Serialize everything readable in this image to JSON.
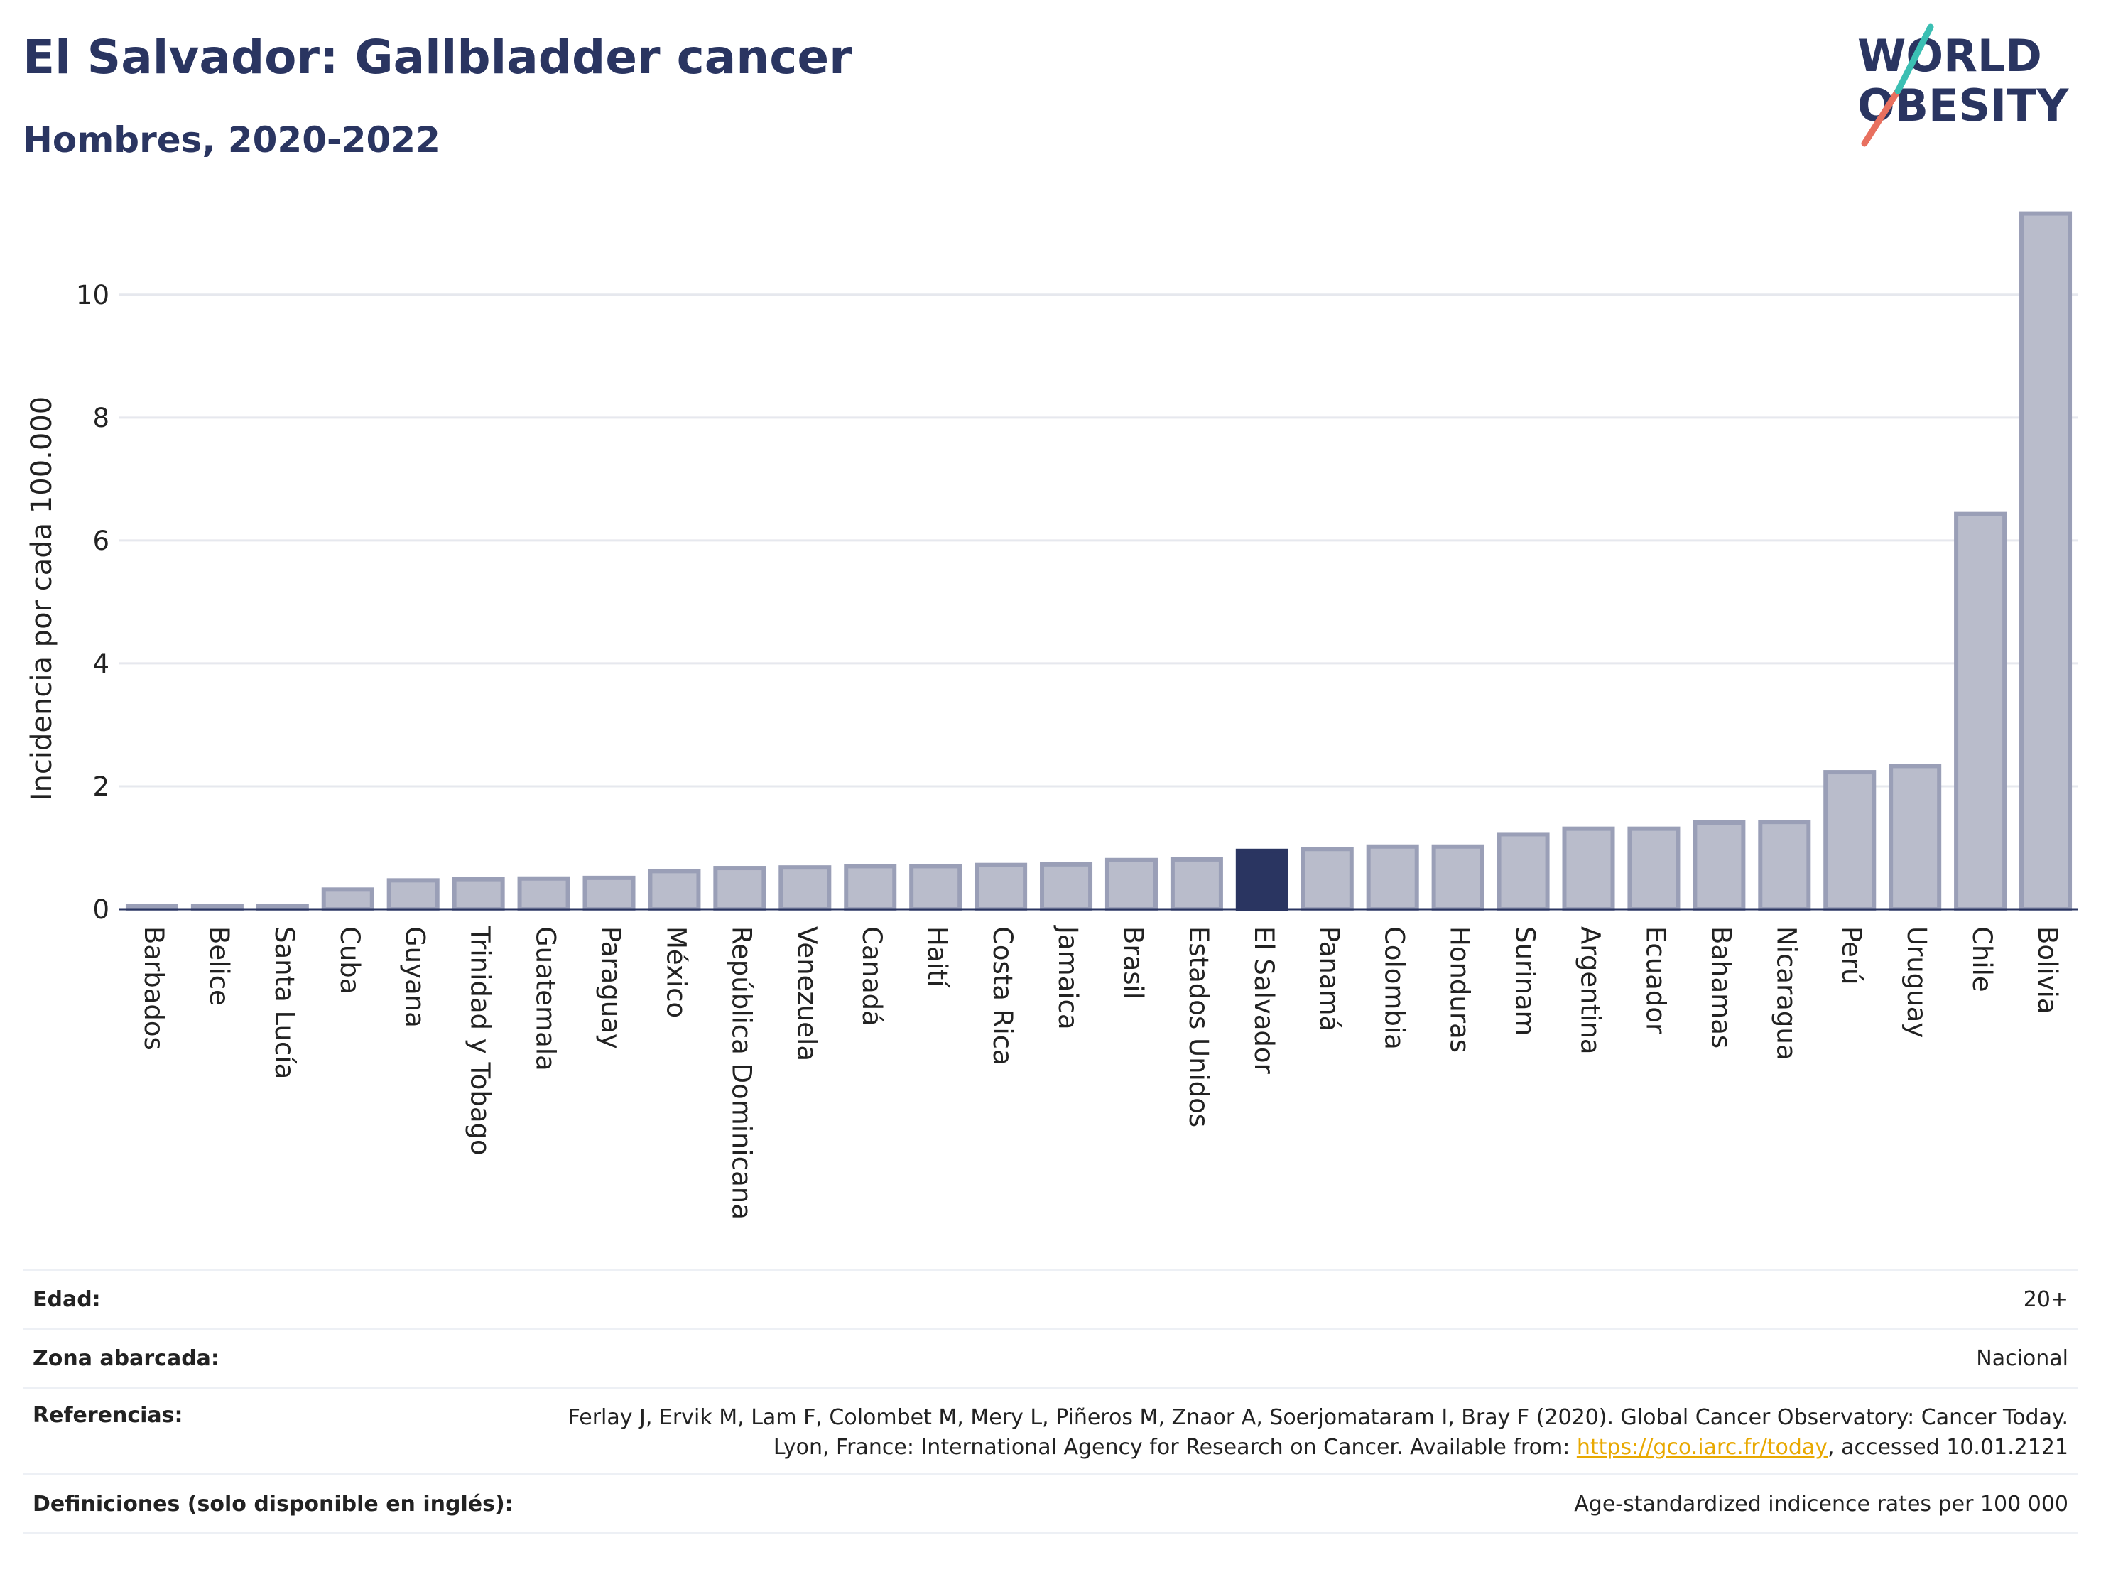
{
  "header": {
    "title": "El Salvador: Gallbladder cancer",
    "subtitle": "Hombres, 2020-2022"
  },
  "logo": {
    "line1": "WORLD",
    "line2": "OBESITY"
  },
  "colors": {
    "bar": "#b9bccb",
    "bar_border": "#9a9fb7",
    "highlight": "#2a3561",
    "grid": "#e6e8ee",
    "axis": "#2a3561",
    "link": "#e8a800"
  },
  "chart_data": {
    "type": "bar",
    "ylabel": "Incidencia por cada 100.000",
    "ylim": [
      0,
      11.5
    ],
    "yticks": [
      0,
      2,
      4,
      6,
      8,
      10
    ],
    "grid": true,
    "highlight": "El Salvador",
    "categories": [
      "Barbados",
      "Belice",
      "Santa Lucía",
      "Cuba",
      "Guyana",
      "Trinidad y Tobago",
      "Guatemala",
      "Paraguay",
      "México",
      "República Dominicana",
      "Venezuela",
      "Canadá",
      "Haití",
      "Costa Rica",
      "Jamaica",
      "Brasil",
      "Estados Unidos",
      "El Salvador",
      "Panamá",
      "Colombia",
      "Honduras",
      "Surinam",
      "Argentina",
      "Ecuador",
      "Bahamas",
      "Nicaragua",
      "Perú",
      "Uruguay",
      "Chile",
      "Bolivia"
    ],
    "values": [
      0.05,
      0.05,
      0.05,
      0.32,
      0.47,
      0.49,
      0.5,
      0.51,
      0.62,
      0.67,
      0.68,
      0.7,
      0.7,
      0.72,
      0.73,
      0.8,
      0.81,
      0.95,
      0.98,
      1.02,
      1.02,
      1.22,
      1.31,
      1.31,
      1.41,
      1.42,
      2.23,
      2.33,
      6.43,
      11.32
    ]
  },
  "info": {
    "age_label": "Edad:",
    "age_value": "20+",
    "zone_label": "Zona abarcada:",
    "zone_value": "Nacional",
    "ref_label": "Referencias:",
    "ref_text_1": "Ferlay J, Ervik M, Lam F, Colombet M, Mery L, Piñeros M, Znaor A, Soerjomataram I, Bray F (2020). Global Cancer Observatory: Cancer Today. Lyon, France: International Agency for Research on Cancer. Available from: ",
    "ref_link": "https://gco.iarc.fr/today",
    "ref_text_2": ", accessed 10.01.2121",
    "def_label": "Definiciones (solo disponible en inglés):",
    "def_value": "Age-standardized indicence rates per 100 000"
  }
}
